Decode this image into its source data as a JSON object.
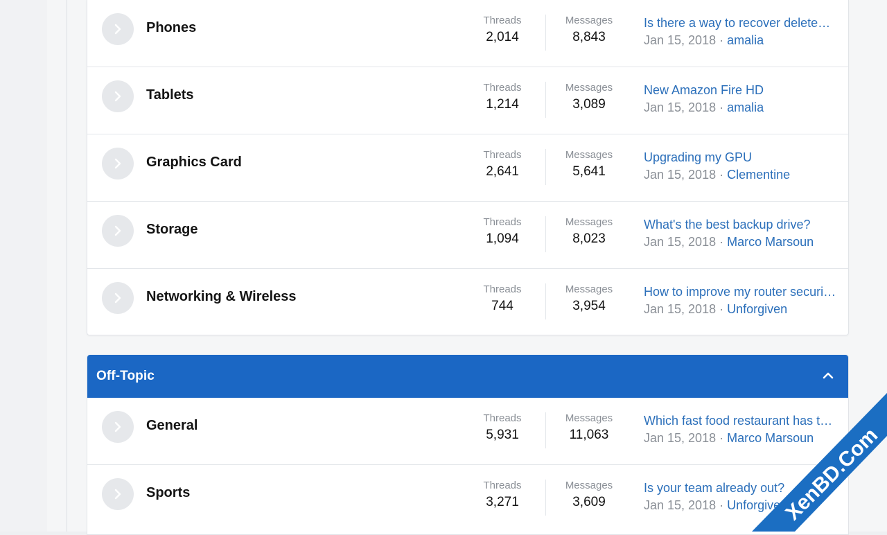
{
  "labels": {
    "threads": "Threads",
    "messages": "Messages",
    "separator": "·"
  },
  "forums_top": [
    {
      "title": "Phones",
      "threads": "2,014",
      "messages": "8,843",
      "last_title": "Is there a way to recover deleted photos?",
      "last_date": "Jan 15, 2018",
      "last_user": "amalia"
    },
    {
      "title": "Tablets",
      "threads": "1,214",
      "messages": "3,089",
      "last_title": "New Amazon Fire HD",
      "last_date": "Jan 15, 2018",
      "last_user": "amalia"
    },
    {
      "title": "Graphics Card",
      "threads": "2,641",
      "messages": "5,641",
      "last_title": "Upgrading my GPU",
      "last_date": "Jan 15, 2018",
      "last_user": "Clementine"
    },
    {
      "title": "Storage",
      "threads": "1,094",
      "messages": "8,023",
      "last_title": "What's the best backup drive?",
      "last_date": "Jan 15, 2018",
      "last_user": "Marco Marsoun"
    },
    {
      "title": "Networking & Wireless",
      "threads": "744",
      "messages": "3,954",
      "last_title": "How to improve my router security?",
      "last_date": "Jan 15, 2018",
      "last_user": "Unforgiven"
    }
  ],
  "category": {
    "title": "Off-Topic"
  },
  "forums_offtopic": [
    {
      "title": "General",
      "threads": "5,931",
      "messages": "11,063",
      "last_title": "Which fast food restaurant has the best fries?",
      "last_date": "Jan 15, 2018",
      "last_user": "Marco Marsoun"
    },
    {
      "title": "Sports",
      "threads": "3,271",
      "messages": "3,609",
      "last_title": "Is your team already out?",
      "last_date": "Jan 15, 2018",
      "last_user": "Unforgiven"
    }
  ],
  "watermark": {
    "text": "XenBD.Com"
  },
  "colors": {
    "accent": "#1b67c4",
    "link": "#2b6fba",
    "muted": "#8a8f96",
    "watermark": "#1b6ec2"
  },
  "icons": {
    "node": "chevron-right-icon",
    "collapse": "chevron-up-icon"
  }
}
